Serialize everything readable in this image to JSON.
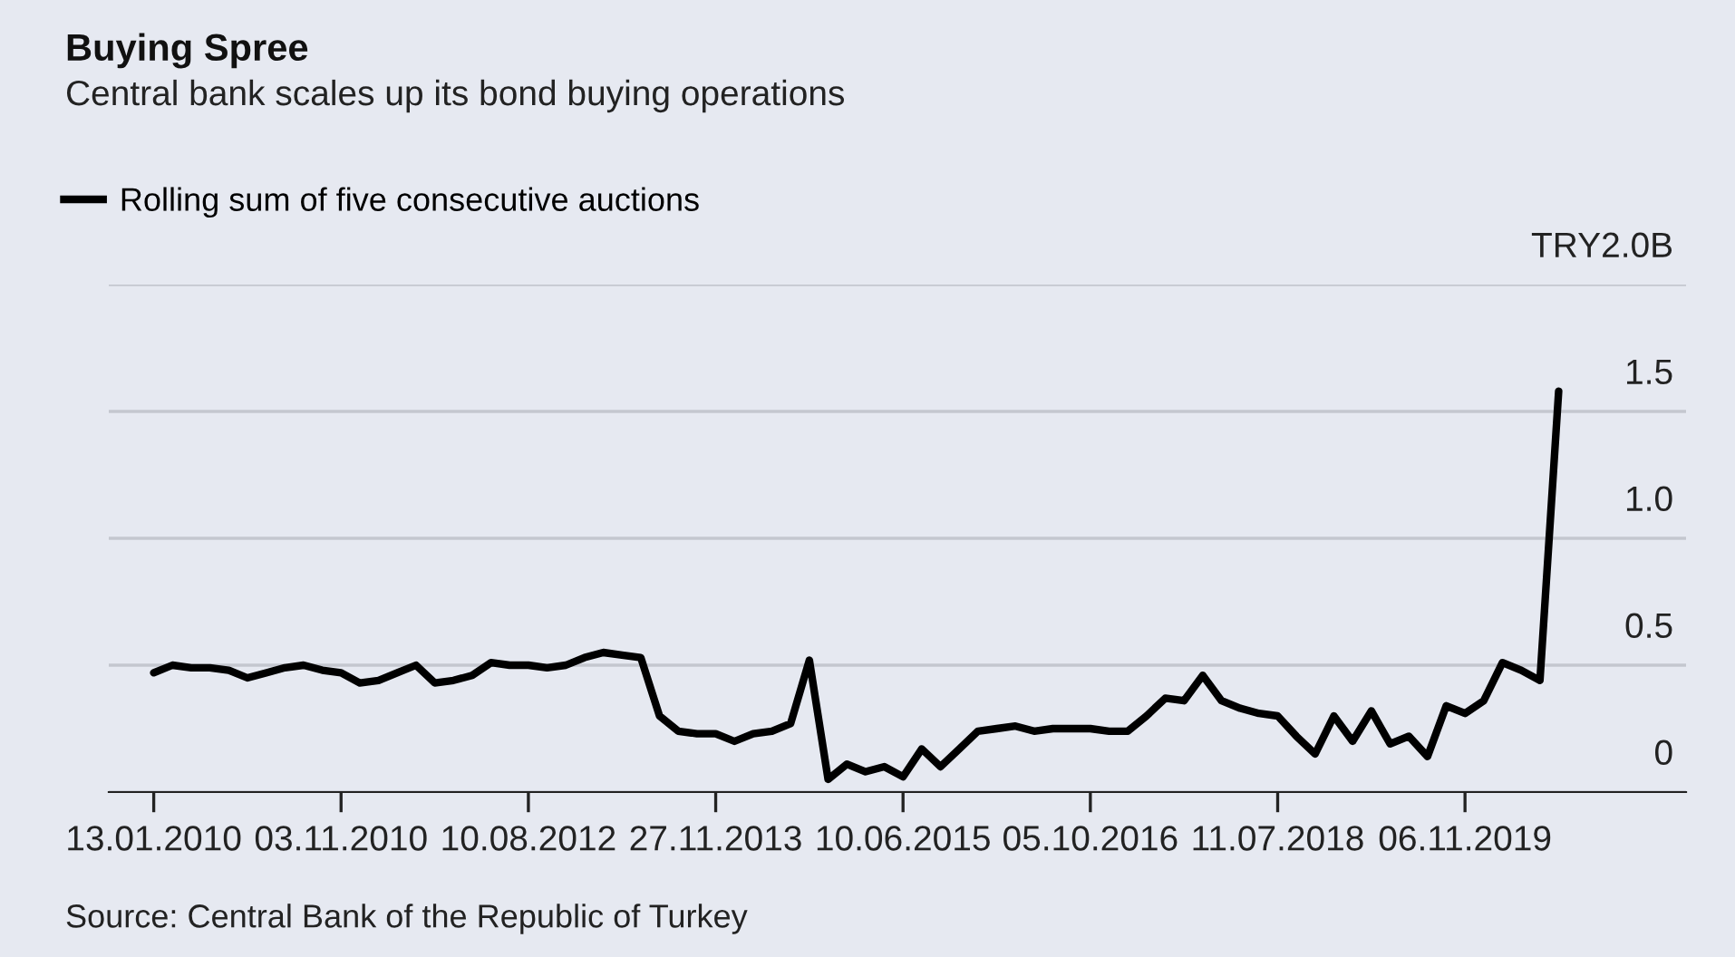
{
  "chart_data": {
    "type": "line",
    "title": "Buying Spree",
    "subtitle": "Central bank scales up its bond buying operations",
    "annotations": [
      "Source: Central Bank of the Republic of Turkey"
    ],
    "categories": [
      "13.01.2010",
      null,
      null,
      null,
      null,
      null,
      null,
      null,
      null,
      null,
      "03.11.2010",
      null,
      null,
      null,
      null,
      null,
      null,
      null,
      null,
      null,
      "10.08.2012",
      null,
      null,
      null,
      null,
      null,
      null,
      null,
      null,
      null,
      "27.11.2013",
      null,
      null,
      null,
      null,
      null,
      null,
      null,
      null,
      null,
      "10.06.2015",
      null,
      null,
      null,
      null,
      null,
      null,
      null,
      null,
      null,
      "05.10.2016",
      null,
      null,
      null,
      null,
      null,
      null,
      null,
      null,
      null,
      "11.07.2018",
      null,
      null,
      null,
      null,
      null,
      null,
      null,
      null,
      null,
      "06.11.2019",
      null,
      null,
      null,
      null,
      null
    ],
    "series": [
      {
        "name": "Rolling sum of five consecutive auctions",
        "color": "#000000",
        "values": [
          0.47,
          0.5,
          0.49,
          0.49,
          0.48,
          0.45,
          0.47,
          0.49,
          0.5,
          0.48,
          0.47,
          0.43,
          0.44,
          0.47,
          0.5,
          0.43,
          0.44,
          0.46,
          0.51,
          0.5,
          0.5,
          0.49,
          0.5,
          0.53,
          0.55,
          0.54,
          0.53,
          0.3,
          0.24,
          0.23,
          0.23,
          0.2,
          0.23,
          0.24,
          0.27,
          0.52,
          0.05,
          0.11,
          0.08,
          0.1,
          0.06,
          0.17,
          0.1,
          0.17,
          0.24,
          0.25,
          0.26,
          0.24,
          0.25,
          0.25,
          0.25,
          0.24,
          0.24,
          0.3,
          0.37,
          0.36,
          0.46,
          0.36,
          0.33,
          0.31,
          0.3,
          0.22,
          0.15,
          0.3,
          0.2,
          0.32,
          0.19,
          0.22,
          0.14,
          0.34,
          0.31,
          0.36,
          0.51,
          0.48,
          0.44,
          1.58
        ]
      }
    ],
    "ylim": [
      0,
      2.0
    ],
    "yticks": [
      0,
      0.5,
      {
        "value": 1.0,
        "label": "1.0"
      },
      1.5,
      {
        "value": 2.0,
        "label": "TRY2.0B"
      }
    ],
    "grid": "y",
    "legend": "top left",
    "marker": "none",
    "line_style": "solid"
  }
}
